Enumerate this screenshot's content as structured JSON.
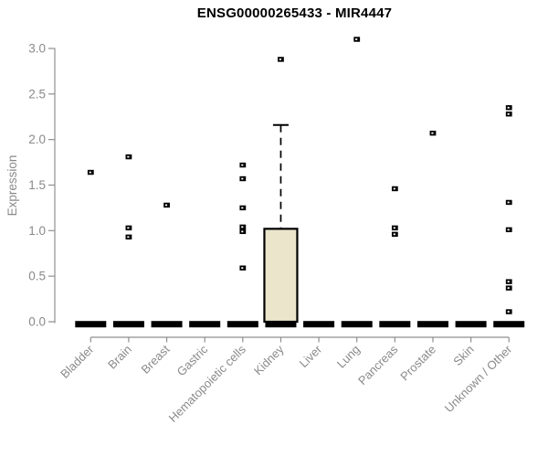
{
  "chart_data": {
    "type": "boxplot",
    "title": "ENSG00000265433 - MIR4447",
    "ylabel": "Expression",
    "ylim": [
      0,
      3.0
    ],
    "yticks": [
      "0.0",
      "0.5",
      "1.0",
      "1.5",
      "2.0",
      "2.5",
      "3.0"
    ],
    "grid": false,
    "legend": "none",
    "categories": [
      "Bladder",
      "Brain",
      "Breast",
      "Gastric",
      "Hematopoietic cells",
      "Kidney",
      "Liver",
      "Lung",
      "Pancreas",
      "Prostate",
      "Skin",
      "Unknown / Other"
    ],
    "groups": [
      {
        "name": "Bladder",
        "median": 0,
        "points": [
          1.64
        ]
      },
      {
        "name": "Brain",
        "median": 0,
        "points": [
          1.81,
          1.03,
          0.93
        ]
      },
      {
        "name": "Breast",
        "median": 0,
        "points": [
          1.28
        ]
      },
      {
        "name": "Gastric",
        "median": 0,
        "points": []
      },
      {
        "name": "Hematopoietic cells",
        "median": 0,
        "points": [
          1.72,
          1.57,
          1.25,
          1.04,
          0.99,
          0.59
        ]
      },
      {
        "name": "Kidney",
        "median": 0,
        "box": {
          "q1": 0,
          "q3": 1.02,
          "whisker_high": 2.16
        },
        "points": [
          2.88
        ]
      },
      {
        "name": "Liver",
        "median": 0,
        "points": []
      },
      {
        "name": "Lung",
        "median": 0,
        "points": [
          3.1
        ]
      },
      {
        "name": "Pancreas",
        "median": 0,
        "points": [
          1.46,
          1.03,
          0.96
        ]
      },
      {
        "name": "Prostate",
        "median": 0,
        "points": [
          2.07
        ]
      },
      {
        "name": "Skin",
        "median": 0,
        "points": []
      },
      {
        "name": "Unknown / Other",
        "median": 0,
        "points": [
          2.35,
          2.28,
          1.31,
          1.01,
          0.44,
          0.37,
          0.11
        ]
      }
    ],
    "colors": {
      "background": "#ffffff",
      "box_fill": "#EAE5CB",
      "box_stroke": "#000000",
      "point": "#000000",
      "axis_line": "#8f8f8f",
      "axis_text": "#8a8a8a",
      "title": "#000000"
    }
  }
}
